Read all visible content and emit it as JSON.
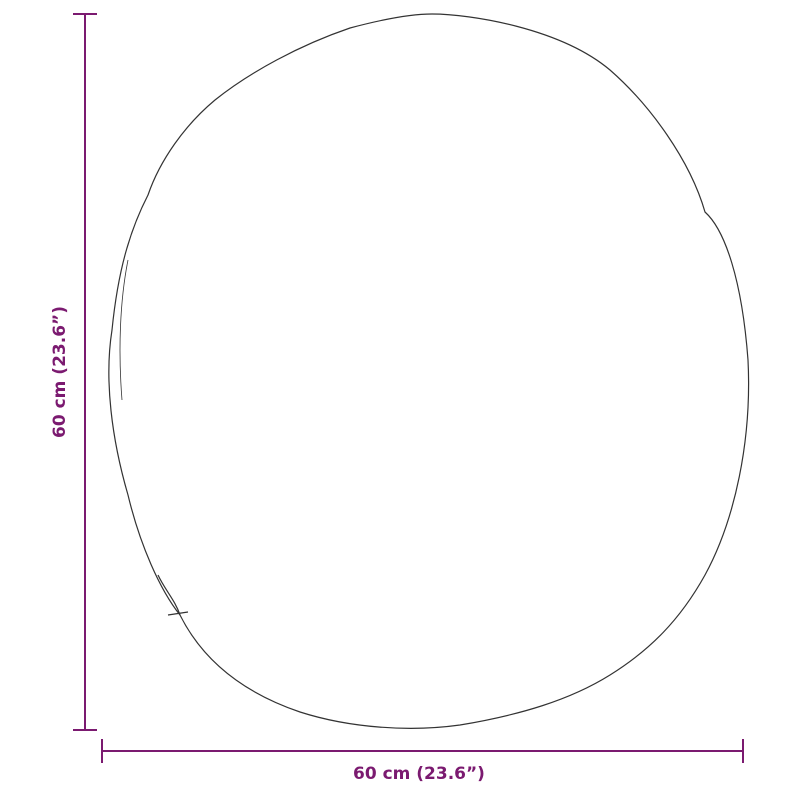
{
  "dimensions": {
    "width_label": "60 cm (23.6”)",
    "height_label": "60 cm (23.6”)"
  },
  "colors": {
    "dimension": "#7b1a70",
    "outline": "#333333"
  }
}
